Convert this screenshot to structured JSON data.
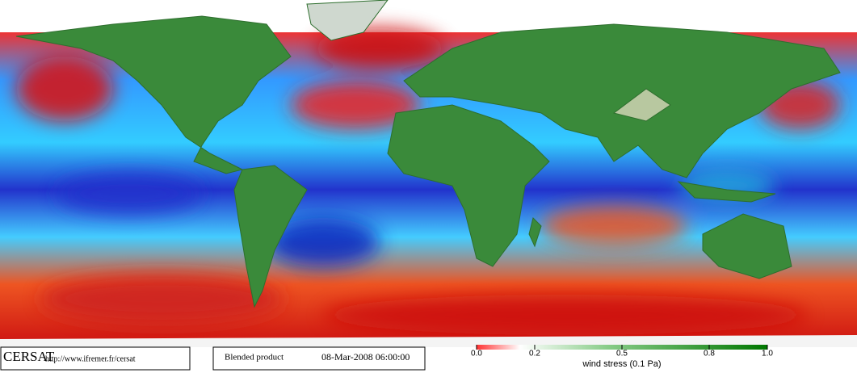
{
  "footer": {
    "logo": "CERSAT",
    "url": "http://www.ifremer.fr/cersat",
    "product": "Blended product",
    "date": "08-Mar-2008 06:00:00"
  },
  "colorbar": {
    "ticks": [
      {
        "value": 0,
        "label": "0.0"
      },
      0.2,
      0.5,
      0.8,
      {
        "value": 1,
        "label": "1.0"
      }
    ],
    "label": "wind stress (0.1 Pa)"
  }
}
